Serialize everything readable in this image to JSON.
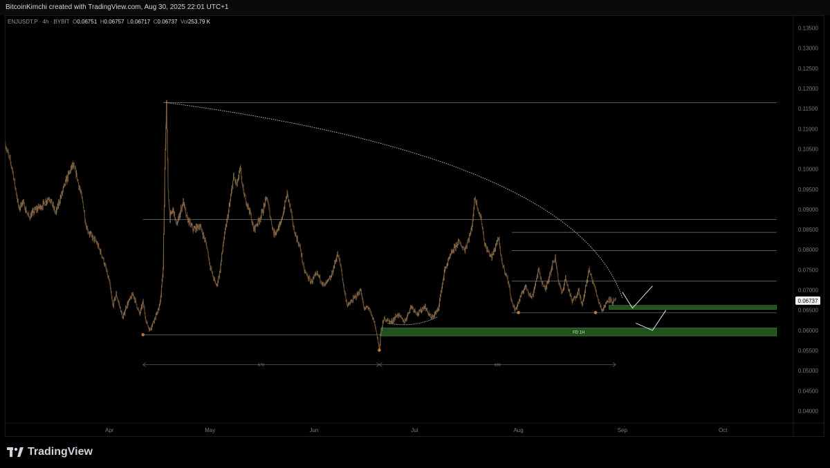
{
  "header": {
    "credit": "BitcoinKimchi created with TradingView.com, Aug 30, 2025 22:01 UTC+1"
  },
  "legend": {
    "symbol": "ENJUSDT.P · 4h · BYBIT",
    "open_label": "O",
    "open": "0.06751",
    "high_label": "H",
    "high": "0.06757",
    "low_label": "L",
    "low": "0.06717",
    "close_label": "C",
    "close": "0.06737",
    "vol_label": "Vol",
    "vol": "253.79 K"
  },
  "brand": {
    "name": "TradingView",
    "logo_icon": "tradingview-logo-icon"
  },
  "colors": {
    "background": "#000000",
    "candle": "#8a6a45",
    "drawing": "#9a9a9a",
    "zone": "#2e6b2b",
    "pivot": "#c8762a",
    "axis_text": "#787b86"
  },
  "chart_data": {
    "type": "candlestick",
    "symbol": "ENJUSDT.P",
    "interval": "4h",
    "exchange": "BYBIT",
    "grid": false,
    "y_axis": {
      "position": "right",
      "range": [
        0.037,
        0.138
      ],
      "ticks": [
        "0.13500",
        "0.13000",
        "0.12500",
        "0.12000",
        "0.11500",
        "0.11000",
        "0.10500",
        "0.10000",
        "0.09500",
        "0.09000",
        "0.08500",
        "0.08000",
        "0.07500",
        "0.07000",
        "0.06500",
        "0.06000",
        "0.05500",
        "0.05000",
        "0.04500",
        "0.04000"
      ]
    },
    "x_axis": {
      "range_days": [
        0,
        235
      ],
      "ticks": [
        {
          "label": "Apr",
          "day": 31
        },
        {
          "label": "May",
          "day": 61
        },
        {
          "label": "Jun",
          "day": 92
        },
        {
          "label": "Jul",
          "day": 122
        },
        {
          "label": "Aug",
          "day": 153
        },
        {
          "label": "Sep",
          "day": 184
        },
        {
          "label": "Oct",
          "day": 214
        }
      ]
    },
    "last_price": "0.06737",
    "price_path": [
      [
        0,
        0.106
      ],
      [
        2,
        0.1
      ],
      [
        4,
        0.09
      ],
      [
        5,
        0.092
      ],
      [
        7,
        0.088
      ],
      [
        9,
        0.09
      ],
      [
        11,
        0.091
      ],
      [
        13,
        0.093
      ],
      [
        15,
        0.089
      ],
      [
        16,
        0.092
      ],
      [
        18,
        0.097
      ],
      [
        20,
        0.101
      ],
      [
        21,
        0.099
      ],
      [
        23,
        0.092
      ],
      [
        24,
        0.086
      ],
      [
        25,
        0.084
      ],
      [
        27,
        0.082
      ],
      [
        29,
        0.078
      ],
      [
        30,
        0.075
      ],
      [
        31,
        0.072
      ],
      [
        32,
        0.066
      ],
      [
        33,
        0.069
      ],
      [
        35,
        0.063
      ],
      [
        36,
        0.066
      ],
      [
        38,
        0.069
      ],
      [
        40,
        0.064
      ],
      [
        41,
        0.067
      ],
      [
        42,
        0.062
      ],
      [
        43,
        0.06
      ],
      [
        44,
        0.062
      ],
      [
        45,
        0.064
      ],
      [
        46,
        0.066
      ],
      [
        47,
        0.075
      ],
      [
        47.5,
        0.1
      ],
      [
        48,
        0.116
      ],
      [
        48.5,
        0.095
      ],
      [
        49,
        0.088
      ],
      [
        50,
        0.09
      ],
      [
        51,
        0.086
      ],
      [
        53,
        0.092
      ],
      [
        54,
        0.088
      ],
      [
        56,
        0.085
      ],
      [
        58,
        0.086
      ],
      [
        60,
        0.081
      ],
      [
        61,
        0.076
      ],
      [
        62,
        0.073
      ],
      [
        63,
        0.071
      ],
      [
        64,
        0.075
      ],
      [
        65,
        0.082
      ],
      [
        67,
        0.092
      ],
      [
        68,
        0.098
      ],
      [
        69,
        0.096
      ],
      [
        70,
        0.1
      ],
      [
        71,
        0.094
      ],
      [
        73,
        0.089
      ],
      [
        74,
        0.085
      ],
      [
        76,
        0.088
      ],
      [
        78,
        0.093
      ],
      [
        79,
        0.088
      ],
      [
        80,
        0.084
      ],
      [
        82,
        0.086
      ],
      [
        84,
        0.094
      ],
      [
        85,
        0.09
      ],
      [
        86,
        0.085
      ],
      [
        88,
        0.08
      ],
      [
        89,
        0.075
      ],
      [
        91,
        0.072
      ],
      [
        93,
        0.074
      ],
      [
        95,
        0.071
      ],
      [
        97,
        0.073
      ],
      [
        99,
        0.079
      ],
      [
        100,
        0.076
      ],
      [
        101,
        0.07
      ],
      [
        102,
        0.066
      ],
      [
        104,
        0.068
      ],
      [
        106,
        0.07
      ],
      [
        107,
        0.065
      ],
      [
        108,
        0.066
      ],
      [
        110,
        0.062
      ],
      [
        111,
        0.058
      ],
      [
        111.5,
        0.055
      ],
      [
        112,
        0.06
      ],
      [
        113,
        0.063
      ],
      [
        115,
        0.062
      ],
      [
        117,
        0.064
      ],
      [
        119,
        0.062
      ],
      [
        121,
        0.066
      ],
      [
        123,
        0.064
      ],
      [
        125,
        0.066
      ],
      [
        127,
        0.063
      ],
      [
        129,
        0.065
      ],
      [
        130,
        0.07
      ],
      [
        131,
        0.075
      ],
      [
        133,
        0.079
      ],
      [
        135,
        0.082
      ],
      [
        137,
        0.08
      ],
      [
        139,
        0.085
      ],
      [
        140,
        0.093
      ],
      [
        141,
        0.09
      ],
      [
        142,
        0.087
      ],
      [
        143,
        0.081
      ],
      [
        145,
        0.078
      ],
      [
        147,
        0.083
      ],
      [
        148,
        0.077
      ],
      [
        150,
        0.072
      ],
      [
        151,
        0.067
      ],
      [
        152,
        0.065
      ],
      [
        154,
        0.069
      ],
      [
        155,
        0.071
      ],
      [
        157,
        0.068
      ],
      [
        159,
        0.075
      ],
      [
        160,
        0.072
      ],
      [
        161,
        0.07
      ],
      [
        163,
        0.076
      ],
      [
        164,
        0.078
      ],
      [
        165,
        0.072
      ],
      [
        166,
        0.069
      ],
      [
        167,
        0.073
      ],
      [
        168,
        0.07
      ],
      [
        169,
        0.067
      ],
      [
        171,
        0.07
      ],
      [
        172,
        0.066
      ],
      [
        174,
        0.075
      ],
      [
        176,
        0.07
      ],
      [
        177,
        0.067
      ],
      [
        178,
        0.065
      ],
      [
        180,
        0.068
      ],
      [
        181,
        0.067
      ],
      [
        182,
        0.0674
      ]
    ],
    "drawings": {
      "horizontal_levels": [
        {
          "price": 0.1165,
          "from_day": 47,
          "to_day": 230
        },
        {
          "price": 0.0875,
          "from_day": 41,
          "to_day": 230
        },
        {
          "price": 0.0843,
          "from_day": 151,
          "to_day": 230
        },
        {
          "price": 0.0798,
          "from_day": 151,
          "to_day": 230
        },
        {
          "price": 0.0722,
          "from_day": 151,
          "to_day": 230
        },
        {
          "price": 0.0644,
          "from_day": 151,
          "to_day": 230
        },
        {
          "price": 0.0589,
          "from_day": 41,
          "to_day": 112
        }
      ],
      "demand_zones": [
        {
          "low": 0.0586,
          "high": 0.0606,
          "from_day": 112,
          "to_day": 230,
          "label": "FD 1H"
        },
        {
          "low": 0.0652,
          "high": 0.0662,
          "from_day": 180,
          "to_day": 230,
          "label": ""
        }
      ],
      "curve": {
        "from": [
          48,
          0.1165
        ],
        "control": [
          170,
          0.103
        ],
        "to": [
          184,
          0.068
        ]
      },
      "rounded_bottom": {
        "from": [
          114,
          0.0618
        ],
        "control": [
          122,
          0.0605
        ],
        "to": [
          129,
          0.0634
        ]
      },
      "pivots": [
        {
          "day": 41,
          "price": 0.0589
        },
        {
          "day": 111.5,
          "price": 0.0551
        },
        {
          "day": 153,
          "price": 0.0644
        },
        {
          "day": 176,
          "price": 0.0644
        }
      ],
      "projections": [
        {
          "points": [
            [
              184,
              0.0695
            ],
            [
              187,
              0.0655
            ],
            [
              193,
              0.071
            ]
          ]
        },
        {
          "points": [
            [
              188,
              0.0618
            ],
            [
              193,
              0.06
            ],
            [
              197,
              0.065
            ]
          ]
        }
      ],
      "duration_measures": [
        {
          "from_day": 41,
          "to_day": 111.5,
          "price": 0.0515,
          "label": "670"
        },
        {
          "from_day": 111.5,
          "to_day": 182,
          "price": 0.0515,
          "label": "690"
        }
      ]
    }
  }
}
